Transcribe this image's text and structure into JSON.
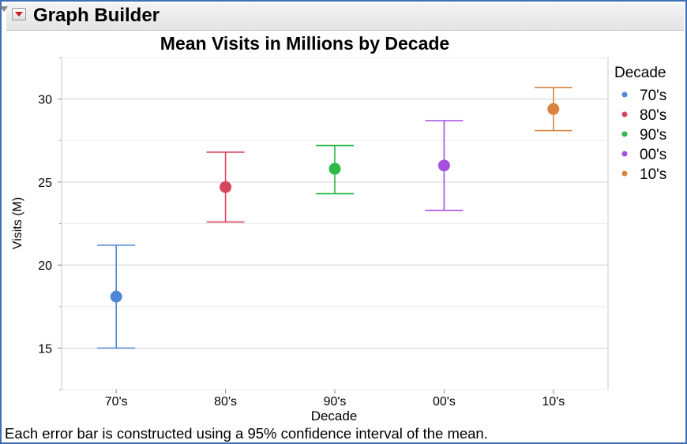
{
  "header": {
    "title": "Graph Builder"
  },
  "chart_data": {
    "type": "scatter",
    "title": "Mean Visits in Millions by Decade",
    "xlabel": "Decade",
    "ylabel": "Visits (M)",
    "categories": [
      "70's",
      "80's",
      "90's",
      "00's",
      "10's"
    ],
    "means": [
      18.1,
      24.7,
      25.8,
      26.0,
      29.4
    ],
    "ci_lower": [
      15.0,
      22.6,
      24.3,
      23.3,
      28.1
    ],
    "ci_upper": [
      21.2,
      26.8,
      27.2,
      28.7,
      30.7
    ],
    "colors": [
      "#4f86d6",
      "#d7465d",
      "#2fb847",
      "#a650e0",
      "#d8843f"
    ],
    "ylim": [
      12.5,
      32.5
    ],
    "yticks": [
      15,
      20,
      25,
      30
    ],
    "grid": true,
    "legend": {
      "title": "Decade",
      "position": "right"
    }
  },
  "footnote": "Each error bar is constructed using a 95% confidence interval of the mean."
}
